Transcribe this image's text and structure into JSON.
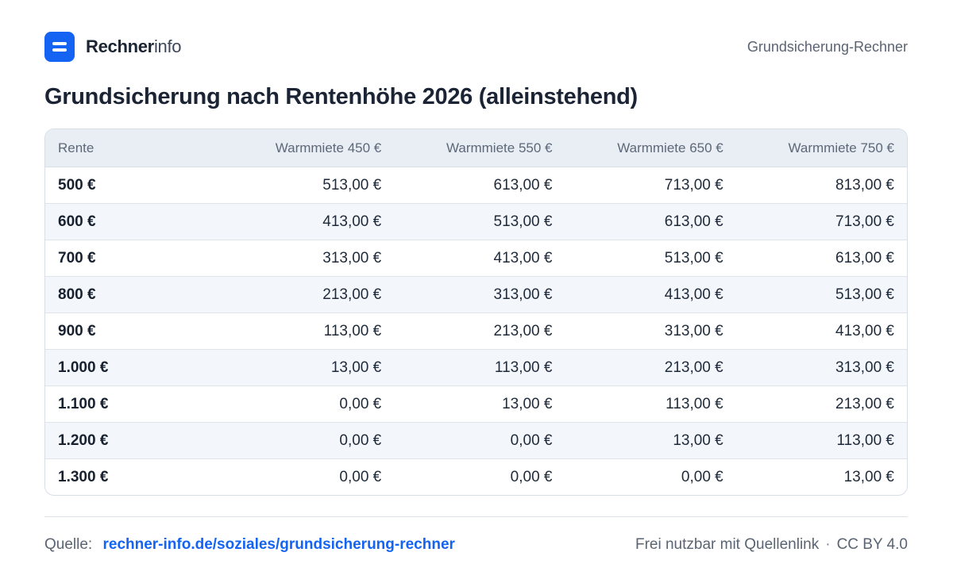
{
  "brand": {
    "name_strong": "Rechner",
    "name_light": "info"
  },
  "header": {
    "right_text": "Grundsicherung-Rechner"
  },
  "page_title": "Grundsicherung nach Rentenhöhe 2026 (alleinstehend)",
  "table": {
    "columns": [
      "Rente",
      "Warmmiete 450 €",
      "Warmmiete 550 €",
      "Warmmiete 650 €",
      "Warmmiete 750 €"
    ],
    "rows": [
      [
        "500 €",
        "513,00 €",
        "613,00 €",
        "713,00 €",
        "813,00 €"
      ],
      [
        "600 €",
        "413,00 €",
        "513,00 €",
        "613,00 €",
        "713,00 €"
      ],
      [
        "700 €",
        "313,00 €",
        "413,00 €",
        "513,00 €",
        "613,00 €"
      ],
      [
        "800 €",
        "213,00 €",
        "313,00 €",
        "413,00 €",
        "513,00 €"
      ],
      [
        "900 €",
        "113,00 €",
        "213,00 €",
        "313,00 €",
        "413,00 €"
      ],
      [
        "1.000 €",
        "13,00 €",
        "113,00 €",
        "213,00 €",
        "313,00 €"
      ],
      [
        "1.100 €",
        "0,00 €",
        "13,00 €",
        "113,00 €",
        "213,00 €"
      ],
      [
        "1.200 €",
        "0,00 €",
        "0,00 €",
        "13,00 €",
        "113,00 €"
      ],
      [
        "1.300 €",
        "0,00 €",
        "0,00 €",
        "0,00 €",
        "13,00 €"
      ]
    ]
  },
  "footer": {
    "source_label": "Quelle:",
    "source_link": "rechner-info.de/soziales/grundsicherung-rechner",
    "license_note": "Frei nutzbar mit Quellenlink",
    "separator": "·",
    "license": "CC BY 4.0"
  },
  "colors": {
    "accent": "#1463f3",
    "header_bg": "#e9eef5",
    "stripe_bg": "#f3f6fa"
  }
}
